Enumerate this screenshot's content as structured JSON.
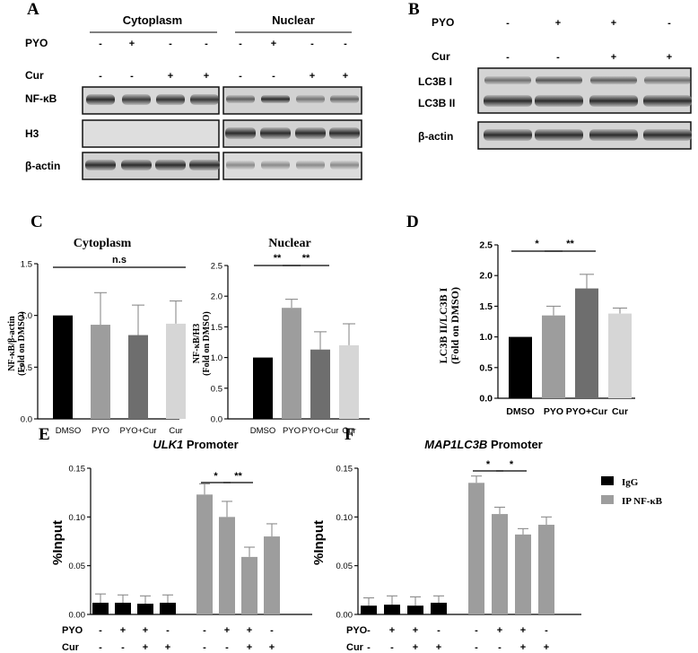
{
  "panels": {
    "A": {
      "letter": "A",
      "headers": [
        "Cytoplasm",
        "Nuclear"
      ],
      "rows": [
        {
          "label": "PYO",
          "signs": [
            "-",
            "+",
            "-",
            "-",
            "-",
            "+",
            "-",
            "-"
          ]
        },
        {
          "label": "Cur",
          "signs": [
            "-",
            "-",
            "+",
            "+",
            "-",
            "-",
            "+",
            "+"
          ]
        }
      ],
      "blot_labels": [
        "NF-κB",
        "H3",
        "β-actin"
      ]
    },
    "B": {
      "letter": "B",
      "rows": [
        {
          "label": "PYO",
          "signs": [
            "-",
            "+",
            "+",
            "-"
          ]
        },
        {
          "label": "Cur",
          "signs": [
            "-",
            "-",
            "+",
            "+"
          ]
        }
      ],
      "blot_labels": [
        "LC3B I",
        "LC3B II",
        "β-actin"
      ]
    },
    "C": {
      "letter": "C"
    },
    "D": {
      "letter": "D"
    },
    "E": {
      "letter": "E"
    },
    "F": {
      "letter": "F"
    }
  },
  "colors": {
    "black": "#000000",
    "gray": "#9d9d9d",
    "dark_gray": "#6e6e6e",
    "light_gray": "#d6d6d6",
    "error": "#8c8c8c"
  },
  "chart_data": [
    {
      "id": "C-cytoplasm",
      "type": "bar",
      "title": "Cytoplasm",
      "ylabel": [
        "NF-κB/β-actin",
        "(Fold on DMSO)"
      ],
      "categories": [
        "DMSO",
        "PYO",
        "PYO+Cur",
        "Cur"
      ],
      "values": [
        1.0,
        0.91,
        0.81,
        0.92
      ],
      "errors": [
        0,
        0.31,
        0.29,
        0.22
      ],
      "ylim": [
        0,
        1.5
      ],
      "yticks": [
        "0.0",
        "0.5",
        "1.0",
        "1.5"
      ],
      "significance": [
        {
          "from": 0,
          "to": 3,
          "label": "n.s"
        }
      ]
    },
    {
      "id": "C-nuclear",
      "type": "bar",
      "title": "Nuclear",
      "ylabel": [
        "NF-κB/H3",
        "(Fold on DMSO)"
      ],
      "categories": [
        "DMSO",
        "PYO",
        "PYO+Cur",
        "Cur"
      ],
      "values": [
        1.0,
        1.81,
        1.13,
        1.2
      ],
      "errors": [
        0,
        0.14,
        0.29,
        0.35
      ],
      "ylim": [
        0,
        2.5
      ],
      "yticks": [
        "0.0",
        "0.5",
        "1.0",
        "1.5",
        "2.0",
        "2.5"
      ],
      "significance": [
        {
          "from": 0,
          "to": 1,
          "label": "**"
        },
        {
          "from": 1,
          "to": 2,
          "label": "**"
        }
      ]
    },
    {
      "id": "D",
      "type": "bar",
      "title": "",
      "ylabel": [
        "LC3B II/LC3B I",
        "(Fold on DMSO)"
      ],
      "categories": [
        "DMSO",
        "PYO",
        "PYO+Cur",
        "Cur"
      ],
      "values": [
        1.0,
        1.35,
        1.79,
        1.38
      ],
      "errors": [
        0,
        0.15,
        0.23,
        0.09
      ],
      "ylim": [
        0,
        2.5
      ],
      "yticks": [
        "0.0",
        "0.5",
        "1.0",
        "1.5",
        "2.0",
        "2.5"
      ],
      "significance": [
        {
          "from": 0,
          "to": 1,
          "label": "*"
        },
        {
          "from": 1,
          "to": 2,
          "label": "**"
        }
      ]
    },
    {
      "id": "E",
      "type": "bar",
      "title_italic": "ULK1",
      "title_rest": " Promoter",
      "ylabel": "%Input",
      "ylim": [
        0,
        0.15
      ],
      "yticks": [
        "0.00",
        "0.05",
        "0.10",
        "0.15"
      ],
      "conditions": {
        "PYO": [
          "-",
          "+",
          "+",
          "-"
        ],
        "Cur": [
          "-",
          "-",
          "+",
          "+"
        ]
      },
      "series": [
        {
          "name": "IgG",
          "values": [
            0.012,
            0.012,
            0.011,
            0.012
          ],
          "errors": [
            0.009,
            0.008,
            0.008,
            0.008
          ]
        },
        {
          "name": "IP NF-κB",
          "values": [
            0.123,
            0.1,
            0.059,
            0.08
          ],
          "errors": [
            0.011,
            0.016,
            0.01,
            0.013
          ]
        }
      ],
      "significance": [
        {
          "from": 0,
          "to": 1,
          "label": "*"
        },
        {
          "from": 1,
          "to": 2,
          "label": "**"
        }
      ]
    },
    {
      "id": "F",
      "type": "bar",
      "title_italic": "MAP1LC3B",
      "title_rest": " Promoter",
      "ylabel": "%Input",
      "ylim": [
        0,
        0.15
      ],
      "yticks": [
        "0.00",
        "0.05",
        "0.10",
        "0.15"
      ],
      "conditions": {
        "PYO": [
          "-",
          "+",
          "+",
          "-"
        ],
        "Cur": [
          "-",
          "-",
          "+",
          "+"
        ]
      },
      "series": [
        {
          "name": "IgG",
          "values": [
            0.009,
            0.01,
            0.009,
            0.012
          ],
          "errors": [
            0.008,
            0.009,
            0.009,
            0.007
          ]
        },
        {
          "name": "IP NF-κB",
          "values": [
            0.135,
            0.103,
            0.082,
            0.092
          ],
          "errors": [
            0.007,
            0.007,
            0.006,
            0.008
          ]
        }
      ],
      "significance": [
        {
          "from": 0,
          "to": 1,
          "label": "*"
        },
        {
          "from": 1,
          "to": 2,
          "label": "*"
        }
      ]
    }
  ]
}
